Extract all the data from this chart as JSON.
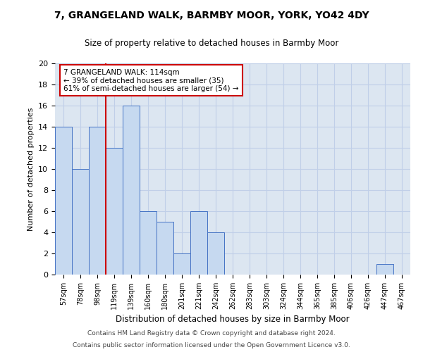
{
  "title1": "7, GRANGELAND WALK, BARMBY MOOR, YORK, YO42 4DY",
  "title2": "Size of property relative to detached houses in Barmby Moor",
  "xlabel": "Distribution of detached houses by size in Barmby Moor",
  "ylabel": "Number of detached properties",
  "footnote1": "Contains HM Land Registry data © Crown copyright and database right 2024.",
  "footnote2": "Contains public sector information licensed under the Open Government Licence v3.0.",
  "categories": [
    "57sqm",
    "78sqm",
    "98sqm",
    "119sqm",
    "139sqm",
    "160sqm",
    "180sqm",
    "201sqm",
    "221sqm",
    "242sqm",
    "262sqm",
    "283sqm",
    "303sqm",
    "324sqm",
    "344sqm",
    "365sqm",
    "385sqm",
    "406sqm",
    "426sqm",
    "447sqm",
    "467sqm"
  ],
  "values": [
    14,
    10,
    14,
    12,
    16,
    6,
    5,
    2,
    6,
    4,
    0,
    0,
    0,
    0,
    0,
    0,
    0,
    0,
    0,
    1,
    0
  ],
  "bar_color": "#c6d9f0",
  "bar_edge_color": "#4472c4",
  "grid_color": "#c0cfe8",
  "bg_color": "#dce6f1",
  "vline_color": "#cc0000",
  "vline_x_index": 2.5,
  "annotation_text": "7 GRANGELAND WALK: 114sqm\n← 39% of detached houses are smaller (35)\n61% of semi-detached houses are larger (54) →",
  "annotation_box_color": "#ffffff",
  "annotation_box_edge": "#cc0000",
  "ylim": [
    0,
    20
  ],
  "yticks": [
    0,
    2,
    4,
    6,
    8,
    10,
    12,
    14,
    16,
    18,
    20
  ]
}
